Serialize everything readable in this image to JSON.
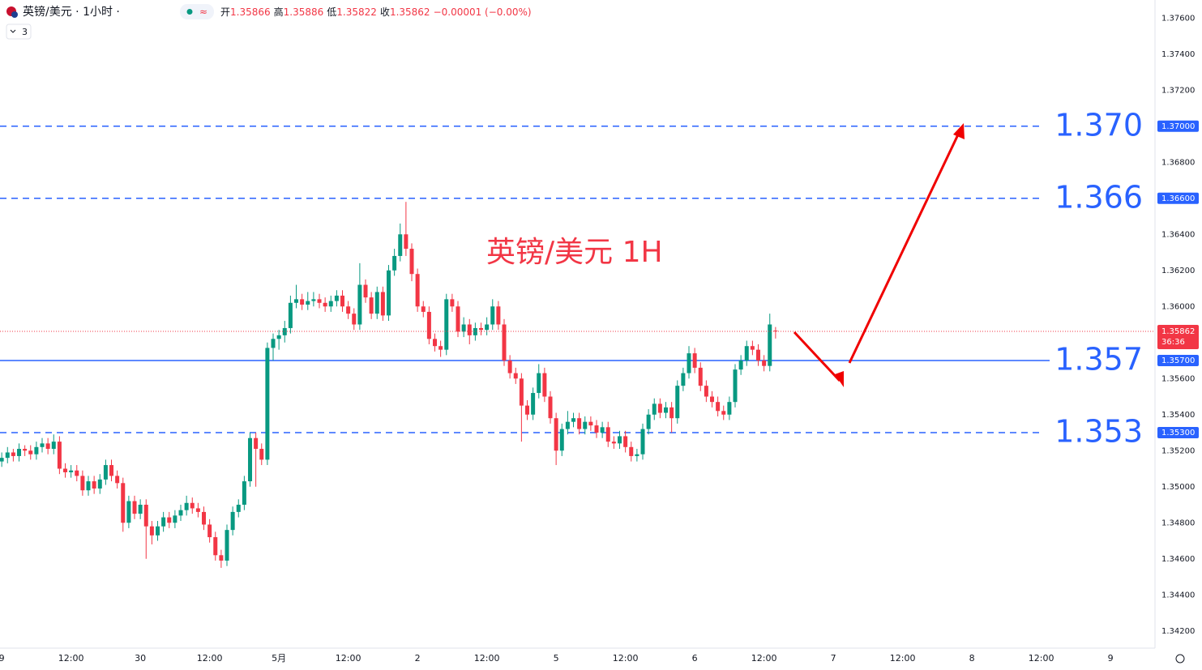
{
  "chart_data": {
    "type": "candlestick",
    "header": {
      "symbol": "英镑/美元 · 1小时 ·",
      "open_label": "开",
      "open": 1.35866,
      "high_label": "高",
      "high": 1.35886,
      "low_label": "低",
      "low": 1.35822,
      "close_label": "收",
      "close": 1.35862,
      "change": "−0.00001 (−0.00%)",
      "indicators": "3"
    },
    "annotation": "英镑/美元 1H",
    "up_color": "#089981",
    "down_color": "#f23645",
    "level_color": "#2962ff",
    "ylim": [
      1.377,
      1.341
    ],
    "yticks": [
      {
        "value": 1.376,
        "label": "1.37600"
      },
      {
        "value": 1.374,
        "label": "1.37400"
      },
      {
        "value": 1.372,
        "label": "1.37200"
      },
      {
        "value": 1.368,
        "label": "1.36800"
      },
      {
        "value": 1.364,
        "label": "1.36400"
      },
      {
        "value": 1.362,
        "label": "1.36200"
      },
      {
        "value": 1.36,
        "label": "1.36000"
      },
      {
        "value": 1.356,
        "label": "1.35600"
      },
      {
        "value": 1.354,
        "label": "1.35400"
      },
      {
        "value": 1.352,
        "label": "1.35200"
      },
      {
        "value": 1.35,
        "label": "1.35000"
      },
      {
        "value": 1.348,
        "label": "1.34800"
      },
      {
        "value": 1.346,
        "label": "1.34600"
      },
      {
        "value": 1.344,
        "label": "1.34400"
      },
      {
        "value": 1.342,
        "label": "1.34200"
      }
    ],
    "xlim": [
      -0.3,
      199
    ],
    "xticks": [
      {
        "value": 0,
        "label": "9"
      },
      {
        "value": 12,
        "label": "12:00"
      },
      {
        "value": 24,
        "label": "30"
      },
      {
        "value": 36,
        "label": "12:00"
      },
      {
        "value": 48,
        "label": "5月"
      },
      {
        "value": 60,
        "label": "12:00"
      },
      {
        "value": 72,
        "label": "2"
      },
      {
        "value": 84,
        "label": "12:00"
      },
      {
        "value": 96,
        "label": "5"
      },
      {
        "value": 108,
        "label": "12:00"
      },
      {
        "value": 120,
        "label": "6"
      },
      {
        "value": 132,
        "label": "12:00"
      },
      {
        "value": 144,
        "label": "7"
      },
      {
        "value": 156,
        "label": "12:00"
      },
      {
        "value": 168,
        "label": "8"
      },
      {
        "value": 180,
        "label": "12:00"
      },
      {
        "value": 192,
        "label": "9"
      }
    ],
    "grid": false,
    "levels": [
      {
        "value": 1.37,
        "label": "1.370",
        "axis_label": "1.37000",
        "style": "dashed"
      },
      {
        "value": 1.366,
        "label": "1.366",
        "axis_label": "1.36600",
        "style": "dashed"
      },
      {
        "value": 1.357,
        "label": "1.357",
        "axis_label": "1.35700",
        "style": "solid"
      },
      {
        "value": 1.353,
        "label": "1.353",
        "axis_label": "1.35300",
        "style": "dashed"
      }
    ],
    "last_price": {
      "value": 1.35862,
      "label": "1.35862",
      "countdown": "36:36"
    },
    "x": [
      0,
      1,
      2,
      3,
      4,
      5,
      6,
      7,
      8,
      9,
      10,
      11,
      12,
      13,
      14,
      15,
      16,
      17,
      18,
      19,
      20,
      21,
      22,
      23,
      24,
      25,
      26,
      27,
      28,
      29,
      30,
      31,
      32,
      33,
      34,
      35,
      36,
      37,
      38,
      39,
      40,
      41,
      42,
      43,
      44,
      45,
      46,
      47,
      48,
      49,
      50,
      51,
      52,
      53,
      54,
      55,
      56,
      57,
      58,
      59,
      60,
      61,
      62,
      63,
      64,
      65,
      66,
      67,
      68,
      69,
      70,
      71,
      72,
      73,
      74,
      75,
      76,
      77,
      78,
      79,
      80,
      81,
      82,
      83,
      84,
      85,
      86,
      87,
      88,
      89,
      90,
      91,
      92,
      93,
      94,
      95,
      96,
      97,
      98,
      99,
      100,
      101,
      102,
      103,
      104,
      105,
      106,
      107,
      108,
      109,
      110,
      111,
      112,
      113,
      114,
      115,
      116,
      117,
      118,
      119,
      120,
      121,
      122,
      123,
      124,
      125,
      126,
      127,
      128,
      129,
      130,
      131,
      132,
      133,
      134
    ],
    "candles": [
      [
        1.3514,
        1.3519,
        1.3511,
        1.3516
      ],
      [
        1.3516,
        1.3522,
        1.3513,
        1.3519
      ],
      [
        1.3519,
        1.3521,
        1.3514,
        1.3517
      ],
      [
        1.3517,
        1.3524,
        1.3514,
        1.3521
      ],
      [
        1.3521,
        1.3523,
        1.3517,
        1.352
      ],
      [
        1.352,
        1.3523,
        1.3515,
        1.3518
      ],
      [
        1.3518,
        1.3525,
        1.3515,
        1.3522
      ],
      [
        1.3522,
        1.3527,
        1.3519,
        1.3524
      ],
      [
        1.3524,
        1.3527,
        1.3518,
        1.3521
      ],
      [
        1.3521,
        1.3529,
        1.3518,
        1.3525
      ],
      [
        1.3525,
        1.3528,
        1.3507,
        1.351
      ],
      [
        1.351,
        1.3513,
        1.3505,
        1.3508
      ],
      [
        1.3508,
        1.3512,
        1.3505,
        1.3509
      ],
      [
        1.3509,
        1.3512,
        1.3503,
        1.3506
      ],
      [
        1.3506,
        1.3509,
        1.3495,
        1.3498
      ],
      [
        1.3498,
        1.3506,
        1.3495,
        1.3503
      ],
      [
        1.3503,
        1.3506,
        1.3496,
        1.3499
      ],
      [
        1.3499,
        1.3507,
        1.3496,
        1.3504
      ],
      [
        1.3504,
        1.3515,
        1.3501,
        1.3512
      ],
      [
        1.3512,
        1.3515,
        1.3503,
        1.3506
      ],
      [
        1.3506,
        1.3509,
        1.3499,
        1.3502
      ],
      [
        1.3502,
        1.3505,
        1.3475,
        1.348
      ],
      [
        1.348,
        1.3495,
        1.3477,
        1.3492
      ],
      [
        1.3492,
        1.3495,
        1.3482,
        1.3485
      ],
      [
        1.3485,
        1.3493,
        1.3482,
        1.349
      ],
      [
        1.349,
        1.3493,
        1.346,
        1.3478
      ],
      [
        1.3478,
        1.3481,
        1.3468,
        1.3473
      ],
      [
        1.3473,
        1.3481,
        1.347,
        1.3478
      ],
      [
        1.3478,
        1.3486,
        1.3475,
        1.3483
      ],
      [
        1.3483,
        1.3486,
        1.3477,
        1.348
      ],
      [
        1.348,
        1.3487,
        1.3477,
        1.3484
      ],
      [
        1.3484,
        1.349,
        1.3481,
        1.3487
      ],
      [
        1.3487,
        1.3495,
        1.3484,
        1.3491
      ],
      [
        1.3491,
        1.3494,
        1.3485,
        1.3488
      ],
      [
        1.3488,
        1.3491,
        1.3483,
        1.3486
      ],
      [
        1.3486,
        1.3489,
        1.3476,
        1.3479
      ],
      [
        1.3479,
        1.3482,
        1.3469,
        1.3472
      ],
      [
        1.3472,
        1.3475,
        1.3459,
        1.3462
      ],
      [
        1.3462,
        1.3465,
        1.3455,
        1.3459
      ],
      [
        1.3459,
        1.3479,
        1.3456,
        1.3476
      ],
      [
        1.3476,
        1.3489,
        1.3473,
        1.3486
      ],
      [
        1.3486,
        1.3493,
        1.3483,
        1.349
      ],
      [
        1.349,
        1.3506,
        1.3487,
        1.3503
      ],
      [
        1.3503,
        1.353,
        1.35,
        1.3527
      ],
      [
        1.3527,
        1.353,
        1.35,
        1.3521
      ],
      [
        1.3521,
        1.3524,
        1.3512,
        1.3515
      ],
      [
        1.3515,
        1.358,
        1.3512,
        1.3577
      ],
      [
        1.3577,
        1.3585,
        1.357,
        1.3582
      ],
      [
        1.3582,
        1.3587,
        1.3576,
        1.3584
      ],
      [
        1.3584,
        1.3592,
        1.358,
        1.3588
      ],
      [
        1.3588,
        1.3606,
        1.3585,
        1.3602
      ],
      [
        1.3602,
        1.3612,
        1.3599,
        1.3604
      ],
      [
        1.3604,
        1.3607,
        1.3598,
        1.3601
      ],
      [
        1.3601,
        1.3608,
        1.3598,
        1.3603
      ],
      [
        1.3603,
        1.3608,
        1.36,
        1.3604
      ],
      [
        1.3604,
        1.3607,
        1.3599,
        1.3602
      ],
      [
        1.3602,
        1.3605,
        1.3597,
        1.36
      ],
      [
        1.36,
        1.3606,
        1.3597,
        1.3603
      ],
      [
        1.3603,
        1.3609,
        1.36,
        1.3606
      ],
      [
        1.3606,
        1.3609,
        1.3597,
        1.36
      ],
      [
        1.36,
        1.3603,
        1.3593,
        1.3596
      ],
      [
        1.3596,
        1.3599,
        1.3587,
        1.359
      ],
      [
        1.359,
        1.3624,
        1.3587,
        1.3612
      ],
      [
        1.3612,
        1.3615,
        1.3602,
        1.3605
      ],
      [
        1.3605,
        1.3608,
        1.3593,
        1.3596
      ],
      [
        1.3596,
        1.3611,
        1.3593,
        1.3608
      ],
      [
        1.3608,
        1.3611,
        1.3592,
        1.3595
      ],
      [
        1.3595,
        1.3623,
        1.3592,
        1.362
      ],
      [
        1.362,
        1.3632,
        1.3617,
        1.3628
      ],
      [
        1.3628,
        1.3646,
        1.3625,
        1.364
      ],
      [
        1.364,
        1.3658,
        1.3628,
        1.3632
      ],
      [
        1.3632,
        1.3635,
        1.3614,
        1.3618
      ],
      [
        1.3618,
        1.3621,
        1.3597,
        1.36
      ],
      [
        1.36,
        1.3603,
        1.3594,
        1.3597
      ],
      [
        1.3597,
        1.36,
        1.3579,
        1.3582
      ],
      [
        1.3582,
        1.3585,
        1.3575,
        1.3578
      ],
      [
        1.3578,
        1.3581,
        1.3572,
        1.3576
      ],
      [
        1.3576,
        1.3607,
        1.3573,
        1.3604
      ],
      [
        1.3604,
        1.3607,
        1.3597,
        1.36
      ],
      [
        1.36,
        1.3603,
        1.3583,
        1.3586
      ],
      [
        1.3586,
        1.3594,
        1.3583,
        1.359
      ],
      [
        1.359,
        1.3593,
        1.3579,
        1.3584
      ],
      [
        1.3584,
        1.3591,
        1.3581,
        1.3588
      ],
      [
        1.3588,
        1.3591,
        1.3584,
        1.3587
      ],
      [
        1.3587,
        1.3594,
        1.3584,
        1.359
      ],
      [
        1.359,
        1.3604,
        1.3587,
        1.36
      ],
      [
        1.36,
        1.3603,
        1.3587,
        1.359
      ],
      [
        1.359,
        1.3593,
        1.3567,
        1.357
      ],
      [
        1.357,
        1.3573,
        1.356,
        1.3563
      ],
      [
        1.3563,
        1.3566,
        1.3557,
        1.356
      ],
      [
        1.356,
        1.3563,
        1.3525,
        1.3545
      ],
      [
        1.3545,
        1.3548,
        1.3537,
        1.354
      ],
      [
        1.354,
        1.3555,
        1.3537,
        1.3552
      ],
      [
        1.3552,
        1.3568,
        1.3549,
        1.3563
      ],
      [
        1.3563,
        1.3566,
        1.3547,
        1.355
      ],
      [
        1.355,
        1.3553,
        1.3535,
        1.3538
      ],
      [
        1.3538,
        1.3541,
        1.3512,
        1.352
      ],
      [
        1.352,
        1.3535,
        1.3517,
        1.3532
      ],
      [
        1.3532,
        1.3542,
        1.3529,
        1.3536
      ],
      [
        1.3536,
        1.3541,
        1.3533,
        1.3538
      ],
      [
        1.3538,
        1.3541,
        1.3529,
        1.3532
      ],
      [
        1.3532,
        1.3539,
        1.3529,
        1.3536
      ],
      [
        1.3536,
        1.3539,
        1.3531,
        1.3534
      ],
      [
        1.3534,
        1.3537,
        1.3527,
        1.353
      ],
      [
        1.353,
        1.3536,
        1.3527,
        1.3533
      ],
      [
        1.3533,
        1.3536,
        1.3522,
        1.3525
      ],
      [
        1.3525,
        1.3528,
        1.3521,
        1.3524
      ],
      [
        1.3524,
        1.3531,
        1.3521,
        1.3528
      ],
      [
        1.3528,
        1.3531,
        1.3519,
        1.3522
      ],
      [
        1.3522,
        1.3525,
        1.3514,
        1.3517
      ],
      [
        1.3517,
        1.3521,
        1.3514,
        1.3518
      ],
      [
        1.3518,
        1.3535,
        1.3515,
        1.3532
      ],
      [
        1.3532,
        1.3543,
        1.3529,
        1.354
      ],
      [
        1.354,
        1.3549,
        1.3537,
        1.3546
      ],
      [
        1.3546,
        1.3549,
        1.3538,
        1.3541
      ],
      [
        1.3541,
        1.3547,
        1.3538,
        1.3544
      ],
      [
        1.3544,
        1.3547,
        1.353,
        1.3538
      ],
      [
        1.3538,
        1.3559,
        1.3535,
        1.3556
      ],
      [
        1.3556,
        1.3566,
        1.3553,
        1.3563
      ],
      [
        1.3563,
        1.3578,
        1.356,
        1.3574
      ],
      [
        1.3574,
        1.3577,
        1.3563,
        1.3566
      ],
      [
        1.3566,
        1.3569,
        1.3553,
        1.3556
      ],
      [
        1.3556,
        1.3559,
        1.3547,
        1.355
      ],
      [
        1.355,
        1.3553,
        1.3544,
        1.3547
      ],
      [
        1.3547,
        1.355,
        1.3539,
        1.3542
      ],
      [
        1.3542,
        1.3545,
        1.3537,
        1.354
      ],
      [
        1.354,
        1.355,
        1.3537,
        1.3547
      ],
      [
        1.3547,
        1.3568,
        1.3544,
        1.3565
      ],
      [
        1.3565,
        1.3573,
        1.3562,
        1.357
      ],
      [
        1.357,
        1.3581,
        1.3567,
        1.3578
      ],
      [
        1.3578,
        1.3581,
        1.3573,
        1.3576
      ],
      [
        1.3576,
        1.3579,
        1.3567,
        1.357
      ],
      [
        1.357,
        1.3573,
        1.3564,
        1.3567
      ],
      [
        1.3567,
        1.3596,
        1.3564,
        1.359
      ],
      [
        1.35866,
        1.35886,
        1.35822,
        1.35862
      ]
    ]
  }
}
